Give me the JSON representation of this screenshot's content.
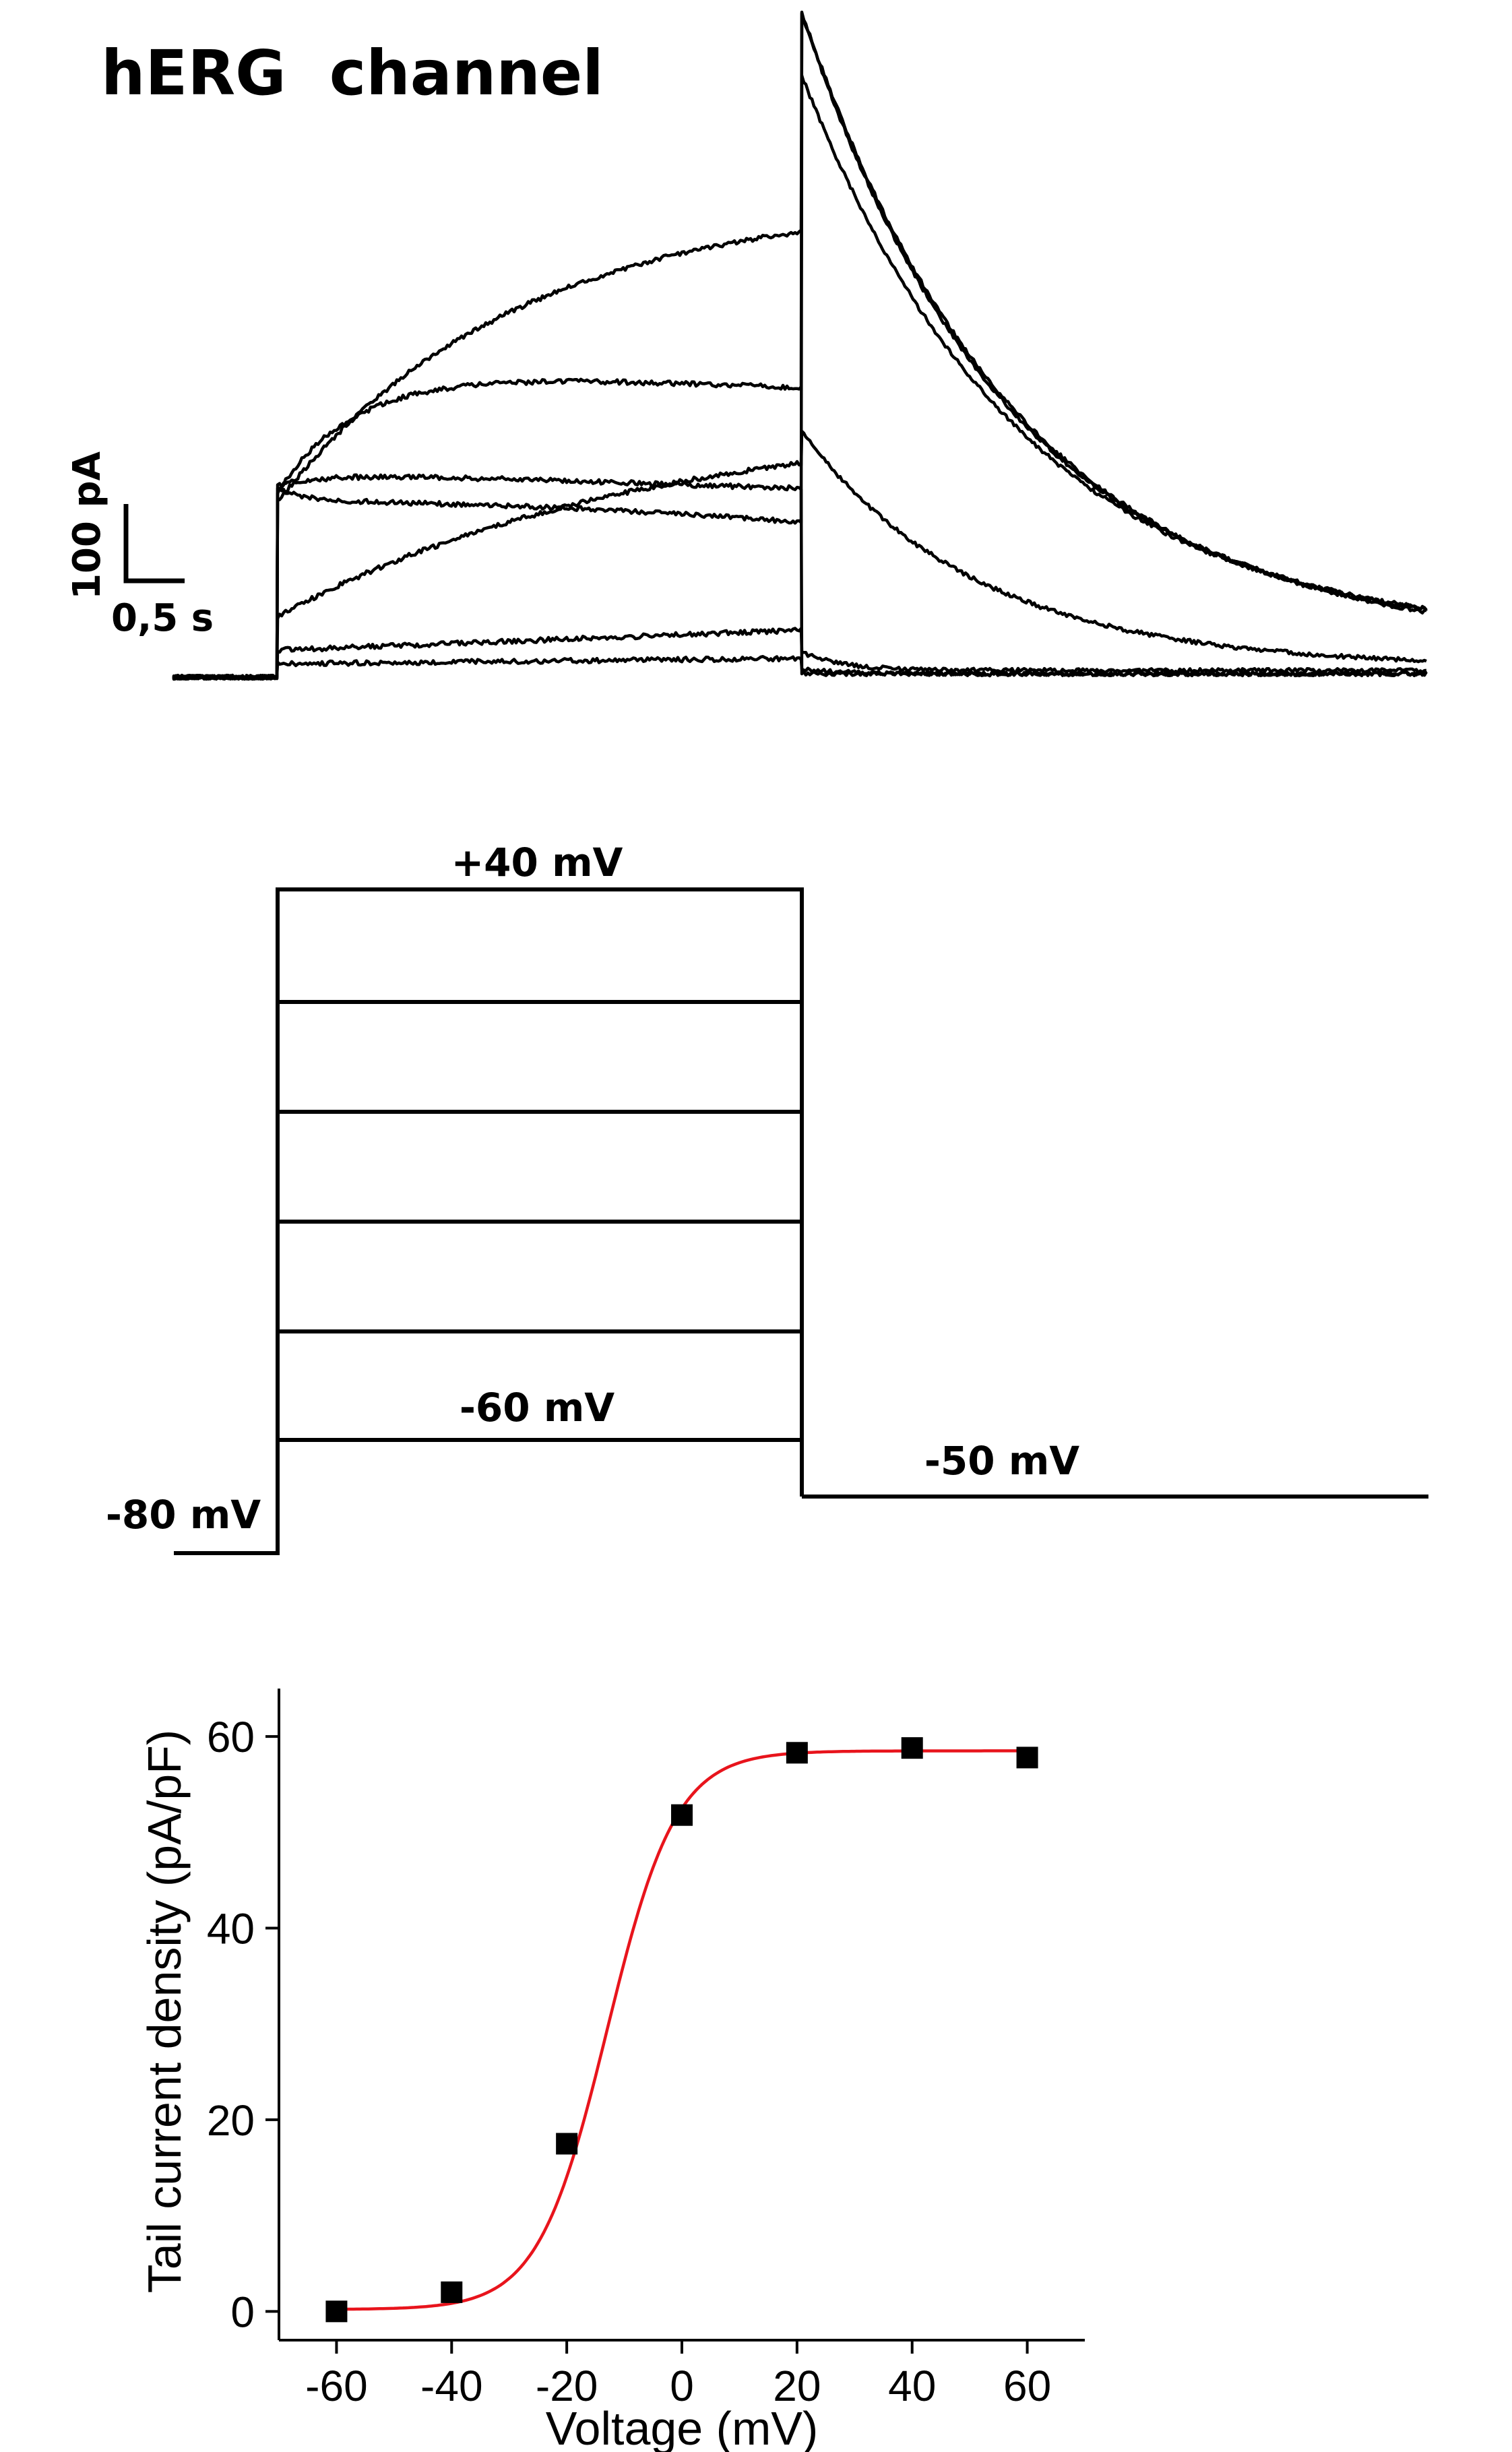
{
  "title": "hERG  channel",
  "colors": {
    "ink": "#000000",
    "fit": "#e8141c",
    "background": "#ffffff"
  },
  "current_traces": {
    "scale_bar": {
      "current_label": "100 pA",
      "time_label": "0,5 s"
    }
  },
  "voltage_protocol": {
    "labels": {
      "top_step": "+40 mV",
      "bottom_step": "-60 mV",
      "tail": "-50 mV",
      "holding": "-80 mV"
    },
    "steps_mV": [
      -60,
      -40,
      -20,
      0,
      20,
      40
    ],
    "holding_mV": -80,
    "tail_mV": -50
  },
  "chart_data": {
    "type": "scatter",
    "xlabel": "Voltage (mV)",
    "ylabel": "Tail current density (pA/pF)",
    "xlim": [
      -70,
      70
    ],
    "ylim": [
      -3,
      65
    ],
    "xticks": [
      -60,
      -40,
      -20,
      0,
      20,
      40,
      60
    ],
    "yticks": [
      0,
      20,
      40,
      60
    ],
    "grid": false,
    "series": [
      {
        "x": [
          -60,
          -40,
          -20,
          0,
          20,
          40,
          60
        ],
        "values": [
          0.0,
          2.0,
          17.5,
          51.8,
          58.3,
          58.8,
          57.8
        ]
      }
    ],
    "fit": {
      "model": "boltzmann",
      "bottom": 0.2,
      "top": 58.5,
      "v_half": -13.0,
      "slope": 6.0
    }
  }
}
